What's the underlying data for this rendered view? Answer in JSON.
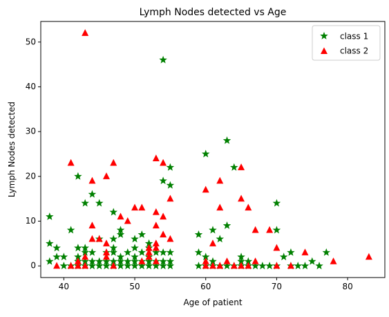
{
  "chart_data": {
    "type": "scatter",
    "title": "Lymph Nodes detected vs Age",
    "xlabel": "Age of patient",
    "ylabel": "Lymph Nodes detected",
    "xlim": [
      36.75,
      85.25
    ],
    "ylim": [
      -2.6,
      54.6
    ],
    "xticks": [
      40,
      50,
      60,
      70,
      80
    ],
    "yticks": [
      0,
      10,
      20,
      30,
      40,
      50
    ],
    "grid": false,
    "legend": {
      "position": "top-right"
    },
    "series": [
      {
        "name": "class 1",
        "marker": "star",
        "color": "#008000",
        "points": [
          [
            38,
            11
          ],
          [
            38,
            5
          ],
          [
            38,
            1
          ],
          [
            39,
            4
          ],
          [
            39,
            2
          ],
          [
            40,
            2
          ],
          [
            40,
            0
          ],
          [
            41,
            8
          ],
          [
            41,
            0
          ],
          [
            42,
            20
          ],
          [
            42,
            4
          ],
          [
            42,
            2
          ],
          [
            42,
            1
          ],
          [
            42,
            0
          ],
          [
            43,
            14
          ],
          [
            43,
            4
          ],
          [
            43,
            3
          ],
          [
            43,
            1
          ],
          [
            43,
            0
          ],
          [
            44,
            16
          ],
          [
            44,
            3
          ],
          [
            44,
            1
          ],
          [
            44,
            0
          ],
          [
            45,
            14
          ],
          [
            45,
            6
          ],
          [
            45,
            1
          ],
          [
            45,
            0
          ],
          [
            46,
            3
          ],
          [
            46,
            1
          ],
          [
            46,
            0
          ],
          [
            47,
            12
          ],
          [
            47,
            6
          ],
          [
            47,
            4
          ],
          [
            47,
            3
          ],
          [
            47,
            1
          ],
          [
            47,
            0
          ],
          [
            48,
            8
          ],
          [
            48,
            7
          ],
          [
            48,
            2
          ],
          [
            48,
            1
          ],
          [
            48,
            0
          ],
          [
            49,
            3
          ],
          [
            49,
            1
          ],
          [
            49,
            0
          ],
          [
            50,
            6
          ],
          [
            50,
            4
          ],
          [
            50,
            2
          ],
          [
            50,
            1
          ],
          [
            50,
            0
          ],
          [
            51,
            7
          ],
          [
            51,
            3
          ],
          [
            51,
            1
          ],
          [
            51,
            0
          ],
          [
            52,
            5
          ],
          [
            52,
            4
          ],
          [
            52,
            2
          ],
          [
            52,
            1
          ],
          [
            52,
            0
          ],
          [
            53,
            3
          ],
          [
            53,
            1
          ],
          [
            53,
            0
          ],
          [
            54,
            46
          ],
          [
            54,
            19
          ],
          [
            54,
            3
          ],
          [
            54,
            1
          ],
          [
            54,
            0
          ],
          [
            55,
            22
          ],
          [
            55,
            18
          ],
          [
            55,
            3
          ],
          [
            55,
            1
          ],
          [
            55,
            0
          ],
          [
            59,
            7
          ],
          [
            59,
            3
          ],
          [
            59,
            0
          ],
          [
            60,
            25
          ],
          [
            60,
            2
          ],
          [
            60,
            0
          ],
          [
            61,
            8
          ],
          [
            61,
            1
          ],
          [
            61,
            0
          ],
          [
            62,
            6
          ],
          [
            62,
            0
          ],
          [
            63,
            28
          ],
          [
            63,
            9
          ],
          [
            63,
            0
          ],
          [
            64,
            22
          ],
          [
            64,
            0
          ],
          [
            65,
            2
          ],
          [
            65,
            1
          ],
          [
            65,
            0
          ],
          [
            66,
            1
          ],
          [
            66,
            0
          ],
          [
            67,
            0
          ],
          [
            68,
            0
          ],
          [
            69,
            0
          ],
          [
            70,
            14
          ],
          [
            70,
            8
          ],
          [
            70,
            0
          ],
          [
            71,
            2
          ],
          [
            72,
            3
          ],
          [
            72,
            0
          ],
          [
            73,
            0
          ],
          [
            74,
            0
          ],
          [
            75,
            1
          ],
          [
            76,
            0
          ],
          [
            77,
            3
          ]
        ]
      },
      {
        "name": "class 2",
        "marker": "triangle",
        "color": "#ff0000",
        "points": [
          [
            39,
            0
          ],
          [
            41,
            23
          ],
          [
            41,
            0
          ],
          [
            42,
            1
          ],
          [
            42,
            0
          ],
          [
            43,
            52
          ],
          [
            43,
            2
          ],
          [
            43,
            0
          ],
          [
            44,
            19
          ],
          [
            44,
            9
          ],
          [
            44,
            6
          ],
          [
            45,
            6
          ],
          [
            46,
            20
          ],
          [
            46,
            5
          ],
          [
            46,
            3
          ],
          [
            46,
            2
          ],
          [
            47,
            23
          ],
          [
            47,
            0
          ],
          [
            48,
            11
          ],
          [
            49,
            10
          ],
          [
            50,
            13
          ],
          [
            51,
            13
          ],
          [
            51,
            1
          ],
          [
            52,
            4
          ],
          [
            52,
            3
          ],
          [
            52,
            2
          ],
          [
            53,
            24
          ],
          [
            53,
            12
          ],
          [
            53,
            9
          ],
          [
            53,
            5
          ],
          [
            53,
            4
          ],
          [
            53,
            1
          ],
          [
            54,
            23
          ],
          [
            54,
            11
          ],
          [
            54,
            7
          ],
          [
            55,
            15
          ],
          [
            55,
            6
          ],
          [
            60,
            17
          ],
          [
            60,
            1
          ],
          [
            60,
            0
          ],
          [
            61,
            5
          ],
          [
            61,
            0
          ],
          [
            62,
            19
          ],
          [
            62,
            13
          ],
          [
            62,
            0
          ],
          [
            63,
            1
          ],
          [
            64,
            0
          ],
          [
            65,
            22
          ],
          [
            65,
            15
          ],
          [
            65,
            0
          ],
          [
            66,
            13
          ],
          [
            66,
            0
          ],
          [
            67,
            8
          ],
          [
            67,
            1
          ],
          [
            69,
            8
          ],
          [
            70,
            4
          ],
          [
            70,
            0
          ],
          [
            72,
            0
          ],
          [
            74,
            3
          ],
          [
            78,
            1
          ],
          [
            83,
            2
          ]
        ]
      }
    ]
  }
}
